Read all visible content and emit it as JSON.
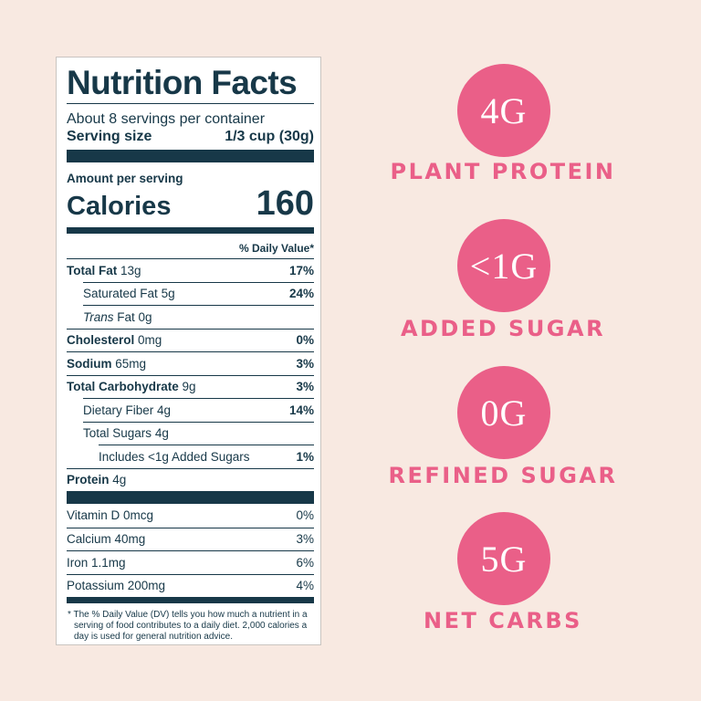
{
  "label": {
    "title": "Nutrition Facts",
    "servings": "About 8 servings per container",
    "serving_size_label": "Serving size",
    "serving_size_value": "1/3 cup (30g)",
    "amount_label": "Amount per serving",
    "calories_label": "Calories",
    "calories_value": "160",
    "dv_header": "% Daily Value*",
    "nutrients": [
      {
        "name": "Total Fat",
        "amount": "13g",
        "dv": "17%"
      },
      {
        "name": "Saturated Fat",
        "amount": "5g",
        "dv": "24%"
      },
      {
        "name": "Trans",
        "amount": "Fat 0g",
        "dv": ""
      },
      {
        "name": "Cholesterol",
        "amount": "0mg",
        "dv": "0%"
      },
      {
        "name": "Sodium",
        "amount": "65mg",
        "dv": "3%"
      },
      {
        "name": "Total Carbohydrate",
        "amount": "9g",
        "dv": "3%"
      },
      {
        "name": "Dietary Fiber",
        "amount": "4g",
        "dv": "14%"
      },
      {
        "name": "Total Sugars",
        "amount": "4g",
        "dv": ""
      },
      {
        "name": "Includes <1g Added Sugars",
        "amount": "",
        "dv": "1%"
      },
      {
        "name": "Protein",
        "amount": "4g",
        "dv": ""
      }
    ],
    "vitamins": [
      {
        "name": "Vitamin D 0mcg",
        "dv": "0%"
      },
      {
        "name": "Calcium 40mg",
        "dv": "3%"
      },
      {
        "name": "Iron 1.1mg",
        "dv": "6%"
      },
      {
        "name": "Potassium 200mg",
        "dv": "4%"
      }
    ],
    "footnote": "* The % Daily Value (DV) tells you how much a nutrient in a serving of food contributes to a daily diet. 2,000 calories a day is used for general nutrition advice."
  },
  "highlights": [
    {
      "value": "4G",
      "caption": "PLANT PROTEIN"
    },
    {
      "value": "<1G",
      "caption": "ADDED SUGAR"
    },
    {
      "value": "0G",
      "caption": "REFINED SUGAR"
    },
    {
      "value": "5G",
      "caption": "NET CARBS"
    }
  ],
  "colors": {
    "background": "#f8e9e1",
    "label_ink": "#173848",
    "accent_pink": "#ea5f88"
  }
}
